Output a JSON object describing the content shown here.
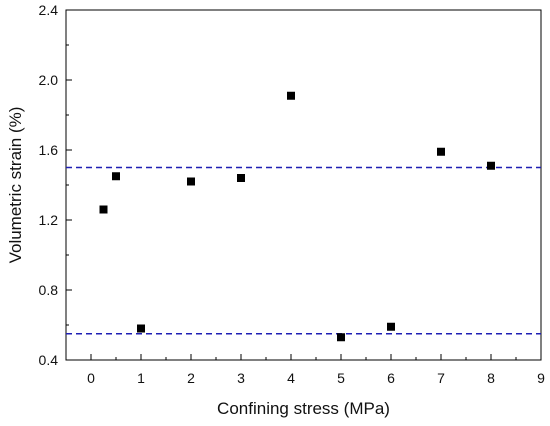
{
  "chart_data": {
    "type": "scatter",
    "title": "",
    "xlabel": "Confining stress (MPa)",
    "ylabel": "Volumetric strain (%)",
    "xlim": [
      -0.5,
      9
    ],
    "ylim": [
      0.4,
      2.4
    ],
    "xticks": [
      0,
      1,
      2,
      3,
      4,
      5,
      6,
      7,
      8,
      9
    ],
    "xtick_labels": [
      "0",
      "1",
      "2",
      "3",
      "4",
      "5",
      "6",
      "7",
      "8",
      "9"
    ],
    "yticks": [
      0.4,
      0.8,
      1.2,
      1.6,
      2.0,
      2.4
    ],
    "ytick_labels": [
      "0.4",
      "0.8",
      "1.2",
      "1.6",
      "2.0",
      "2.4"
    ],
    "y_minor_step": 0.2,
    "grid": false,
    "marker": "square",
    "marker_color": "#000000",
    "series": [
      {
        "x": [
          0.25,
          0.5,
          1,
          2,
          3,
          4,
          5,
          6,
          7,
          8
        ],
        "y": [
          1.26,
          1.45,
          0.58,
          1.42,
          1.44,
          1.91,
          0.53,
          0.59,
          1.59,
          1.51
        ]
      }
    ],
    "reference_lines": [
      {
        "orientation": "horizontal",
        "y": 1.5,
        "style": "dashed",
        "color": "#1f1fb4"
      },
      {
        "orientation": "horizontal",
        "y": 0.55,
        "style": "dashed",
        "color": "#1f1fb4"
      }
    ]
  }
}
